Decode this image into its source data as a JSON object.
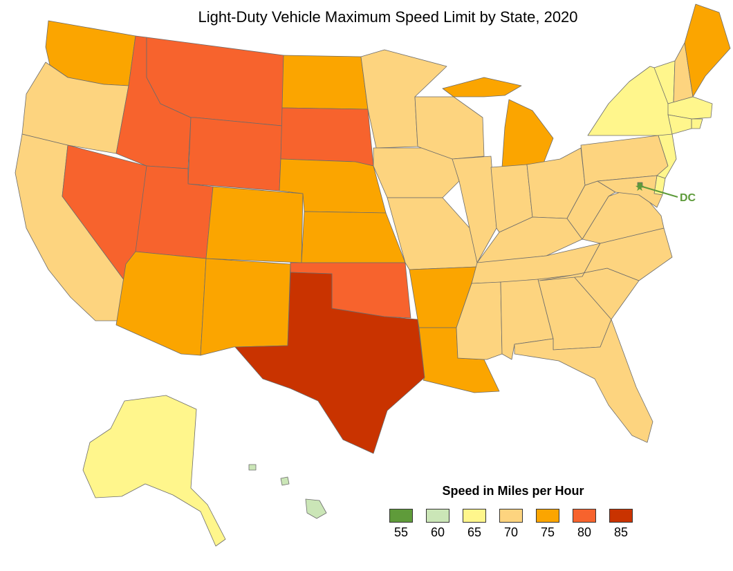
{
  "title": "Light-Duty Vehicle Maximum Speed Limit by State, 2020",
  "legend": {
    "title": "Speed in Miles per Hour",
    "items": [
      {
        "value": "55",
        "color": "#5f9b3a"
      },
      {
        "value": "60",
        "color": "#cbe6b7"
      },
      {
        "value": "65",
        "color": "#fff68c"
      },
      {
        "value": "70",
        "color": "#fdd47f"
      },
      {
        "value": "75",
        "color": "#fba500"
      },
      {
        "value": "80",
        "color": "#f7632d"
      },
      {
        "value": "85",
        "color": "#c93300"
      }
    ]
  },
  "dc_label": "DC",
  "states": [
    {
      "id": "WA",
      "speed": 75
    },
    {
      "id": "OR",
      "speed": 70
    },
    {
      "id": "CA",
      "speed": 70
    },
    {
      "id": "ID",
      "speed": 80
    },
    {
      "id": "NV",
      "speed": 80
    },
    {
      "id": "MT",
      "speed": 80
    },
    {
      "id": "WY",
      "speed": 80
    },
    {
      "id": "UT",
      "speed": 80
    },
    {
      "id": "AZ",
      "speed": 75
    },
    {
      "id": "CO",
      "speed": 75
    },
    {
      "id": "NM",
      "speed": 75
    },
    {
      "id": "ND",
      "speed": 75
    },
    {
      "id": "SD",
      "speed": 80
    },
    {
      "id": "NE",
      "speed": 75
    },
    {
      "id": "KS",
      "speed": 75
    },
    {
      "id": "OK",
      "speed": 80
    },
    {
      "id": "TX",
      "speed": 85
    },
    {
      "id": "MN",
      "speed": 70
    },
    {
      "id": "IA",
      "speed": 70
    },
    {
      "id": "MO",
      "speed": 70
    },
    {
      "id": "AR",
      "speed": 75
    },
    {
      "id": "LA",
      "speed": 75
    },
    {
      "id": "WI",
      "speed": 70
    },
    {
      "id": "IL",
      "speed": 70
    },
    {
      "id": "MI",
      "speed": 75
    },
    {
      "id": "IN",
      "speed": 70
    },
    {
      "id": "OH",
      "speed": 70
    },
    {
      "id": "KY",
      "speed": 70
    },
    {
      "id": "TN",
      "speed": 70
    },
    {
      "id": "MS",
      "speed": 70
    },
    {
      "id": "AL",
      "speed": 70
    },
    {
      "id": "GA",
      "speed": 70
    },
    {
      "id": "FL",
      "speed": 70
    },
    {
      "id": "SC",
      "speed": 70
    },
    {
      "id": "NC",
      "speed": 70
    },
    {
      "id": "VA",
      "speed": 70
    },
    {
      "id": "WV",
      "speed": 70
    },
    {
      "id": "PA",
      "speed": 70
    },
    {
      "id": "NY",
      "speed": 65
    },
    {
      "id": "VT",
      "speed": 65
    },
    {
      "id": "NH",
      "speed": 70
    },
    {
      "id": "ME",
      "speed": 75
    },
    {
      "id": "MA",
      "speed": 65
    },
    {
      "id": "RI",
      "speed": 65
    },
    {
      "id": "CT",
      "speed": 65
    },
    {
      "id": "NJ",
      "speed": 65
    },
    {
      "id": "DE",
      "speed": 65
    },
    {
      "id": "MD",
      "speed": 70
    },
    {
      "id": "DC",
      "speed": 55
    },
    {
      "id": "AK",
      "speed": 65
    },
    {
      "id": "HI",
      "speed": 60
    }
  ]
}
